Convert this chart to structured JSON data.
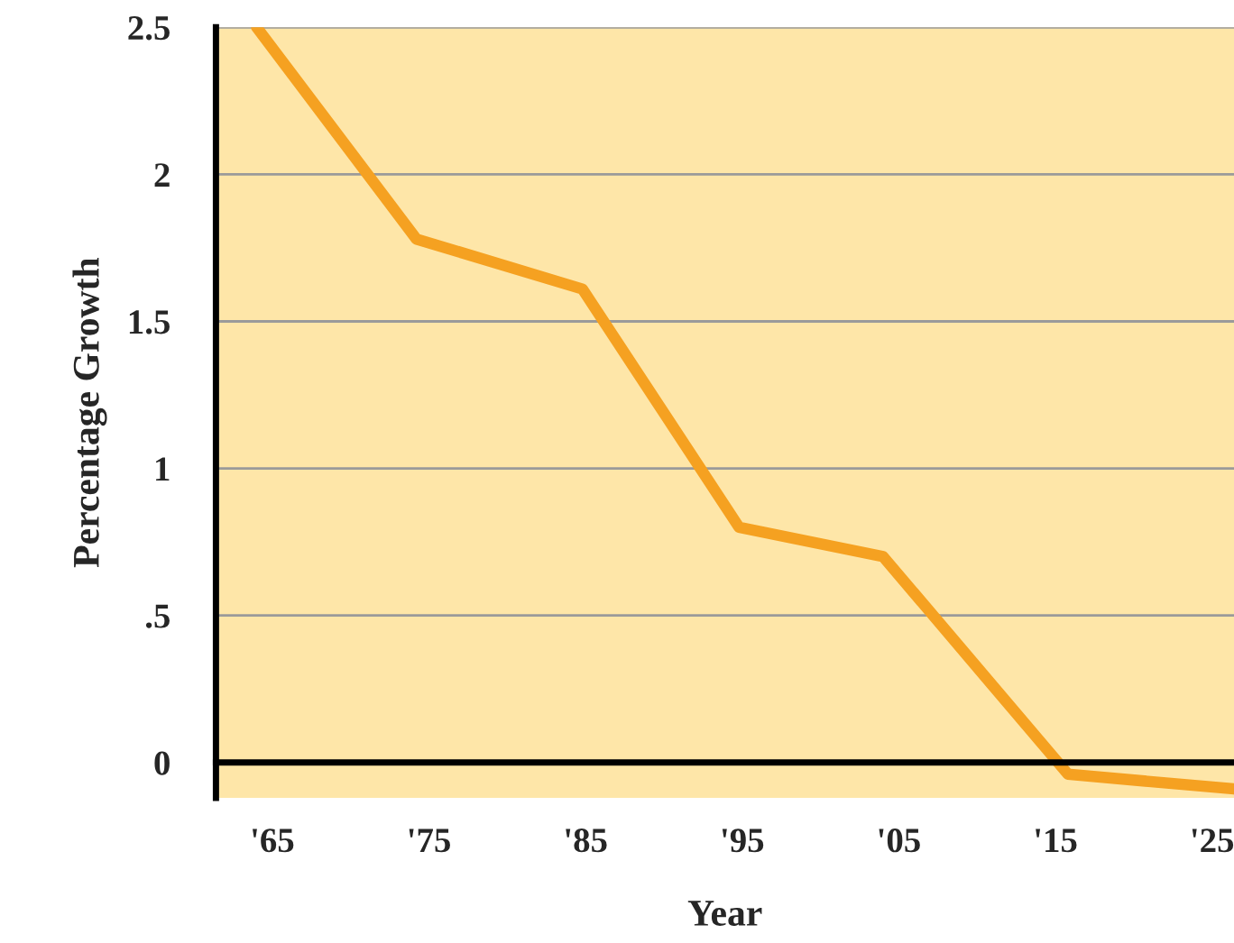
{
  "chart_data": {
    "type": "line",
    "xlabel": "Year",
    "ylabel": "Percentage Growth",
    "x": [
      1964,
      1974.2,
      1984.8,
      1994.8,
      2004,
      2015.8,
      2026.4
    ],
    "series": [
      {
        "color": "#f5a121",
        "values": [
          2.5,
          1.78,
          1.61,
          0.8,
          0.7,
          -0.04,
          -0.09
        ]
      }
    ],
    "xlim": [
      1961.4,
      2026.4
    ],
    "ylim": [
      -0.12,
      2.5
    ],
    "xticks": [
      {
        "value": 1965,
        "label": "'65"
      },
      {
        "value": 1975,
        "label": "'75"
      },
      {
        "value": 1985,
        "label": "'85"
      },
      {
        "value": 1995,
        "label": "'95"
      },
      {
        "value": 2005,
        "label": "'05"
      },
      {
        "value": 2015,
        "label": "'15"
      },
      {
        "value": 2025,
        "label": "'25"
      }
    ],
    "yticks": [
      0,
      {
        "value": 0.5,
        "label": ".5"
      },
      1,
      1.5,
      2,
      2.5
    ],
    "grid": "y",
    "legend": false,
    "marker": "none",
    "line_style": "solid"
  }
}
